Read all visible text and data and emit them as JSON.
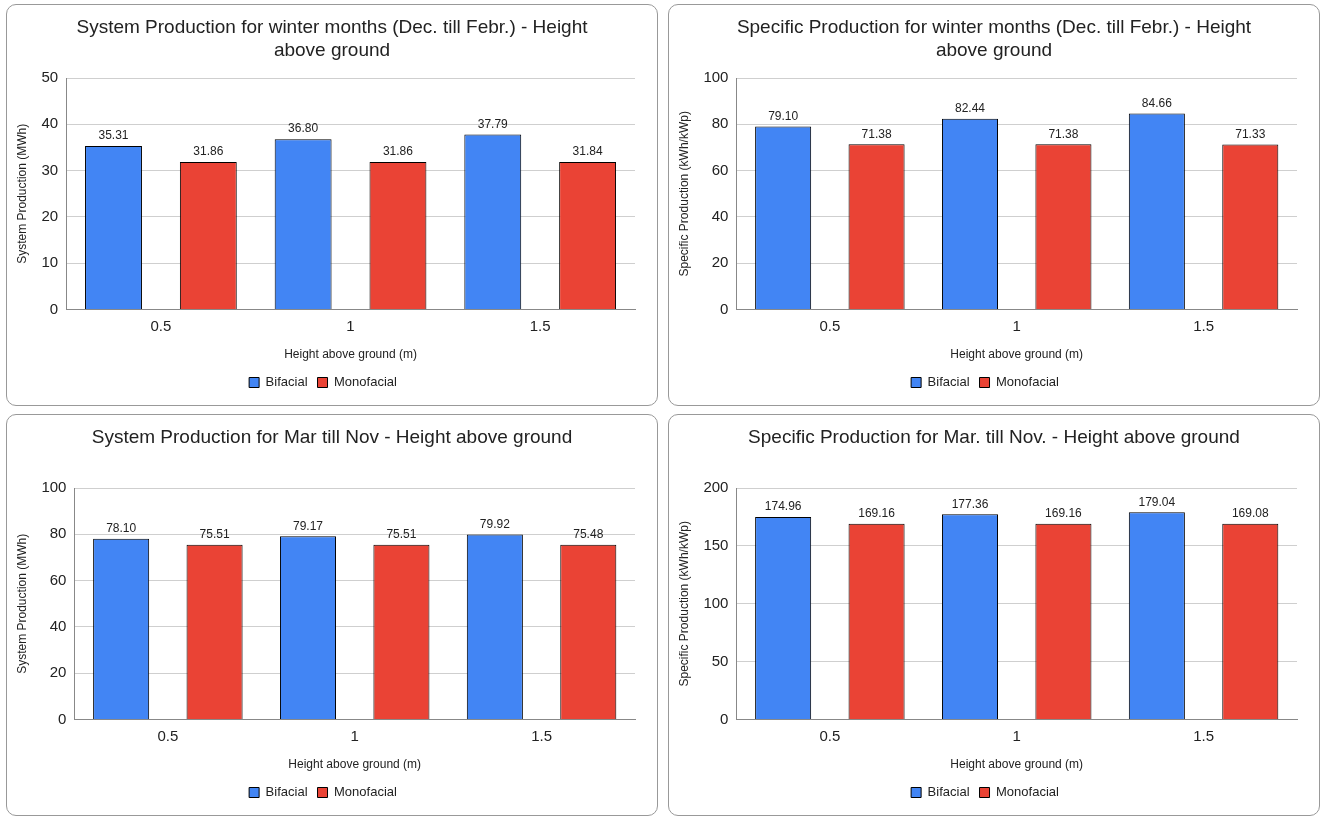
{
  "chart_data": [
    {
      "type": "bar",
      "title": "System Production for winter months (Dec. till Febr.) - Height above ground",
      "xlabel": "Height above ground (m)",
      "ylabel": "System Production (MWh)",
      "categories": [
        "0.5",
        "1",
        "1.5"
      ],
      "series": [
        {
          "name": "Bifacial",
          "color": "#4285f4",
          "values": [
            35.31,
            36.8,
            37.79
          ],
          "value_labels": [
            "35.31",
            "36.80",
            "37.79"
          ]
        },
        {
          "name": "Monofacial",
          "color": "#ea4335",
          "values": [
            31.86,
            31.86,
            31.84
          ],
          "value_labels": [
            "31.86",
            "31.86",
            "31.84"
          ]
        }
      ],
      "ylim": [
        0,
        50
      ],
      "yticks": [
        0,
        10,
        20,
        30,
        40,
        50
      ],
      "grid": "y",
      "legend": "bottom"
    },
    {
      "type": "bar",
      "title": "Specific Production for winter months (Dec. till Febr.) - Height above ground",
      "xlabel": "Height above ground (m)",
      "ylabel": "Specific Production (kWh/kWp)",
      "categories": [
        "0.5",
        "1",
        "1.5"
      ],
      "series": [
        {
          "name": "Bifacial",
          "color": "#4285f4",
          "values": [
            79.1,
            82.44,
            84.66
          ],
          "value_labels": [
            "79.10",
            "82.44",
            "84.66"
          ]
        },
        {
          "name": "Monofacial",
          "color": "#ea4335",
          "values": [
            71.38,
            71.38,
            71.33
          ],
          "value_labels": [
            "71.38",
            "71.38",
            "71.33"
          ]
        }
      ],
      "ylim": [
        0,
        100
      ],
      "yticks": [
        0,
        20,
        40,
        60,
        80,
        100
      ],
      "grid": "y",
      "legend": "bottom"
    },
    {
      "type": "bar",
      "title": "System Production for Mar till Nov - Height above ground",
      "xlabel": "Height above ground (m)",
      "ylabel": "System Production (MWh)",
      "categories": [
        "0.5",
        "1",
        "1.5"
      ],
      "series": [
        {
          "name": "Bifacial",
          "color": "#4285f4",
          "values": [
            78.1,
            79.17,
            79.92
          ],
          "value_labels": [
            "78.10",
            "79.17",
            "79.92"
          ]
        },
        {
          "name": "Monofacial",
          "color": "#ea4335",
          "values": [
            75.51,
            75.51,
            75.48
          ],
          "value_labels": [
            "75.51",
            "75.51",
            "75.48"
          ]
        }
      ],
      "ylim": [
        0,
        100
      ],
      "yticks": [
        0,
        20,
        40,
        60,
        80,
        100
      ],
      "grid": "y",
      "legend": "bottom"
    },
    {
      "type": "bar",
      "title": "Specific Production for Mar. till Nov. - Height above ground",
      "xlabel": "Height above ground (m)",
      "ylabel": "Specific Production (kWh/kWp)",
      "categories": [
        "0.5",
        "1",
        "1.5"
      ],
      "series": [
        {
          "name": "Bifacial",
          "color": "#4285f4",
          "values": [
            174.96,
            177.36,
            179.04
          ],
          "value_labels": [
            "174.96",
            "177.36",
            "179.04"
          ]
        },
        {
          "name": "Monofacial",
          "color": "#ea4335",
          "values": [
            169.16,
            169.16,
            169.08
          ],
          "value_labels": [
            "169.16",
            "169.16",
            "169.08"
          ]
        }
      ],
      "ylim": [
        0,
        200
      ],
      "yticks": [
        0,
        50,
        100,
        150,
        200
      ],
      "grid": "y",
      "legend": "bottom"
    }
  ]
}
